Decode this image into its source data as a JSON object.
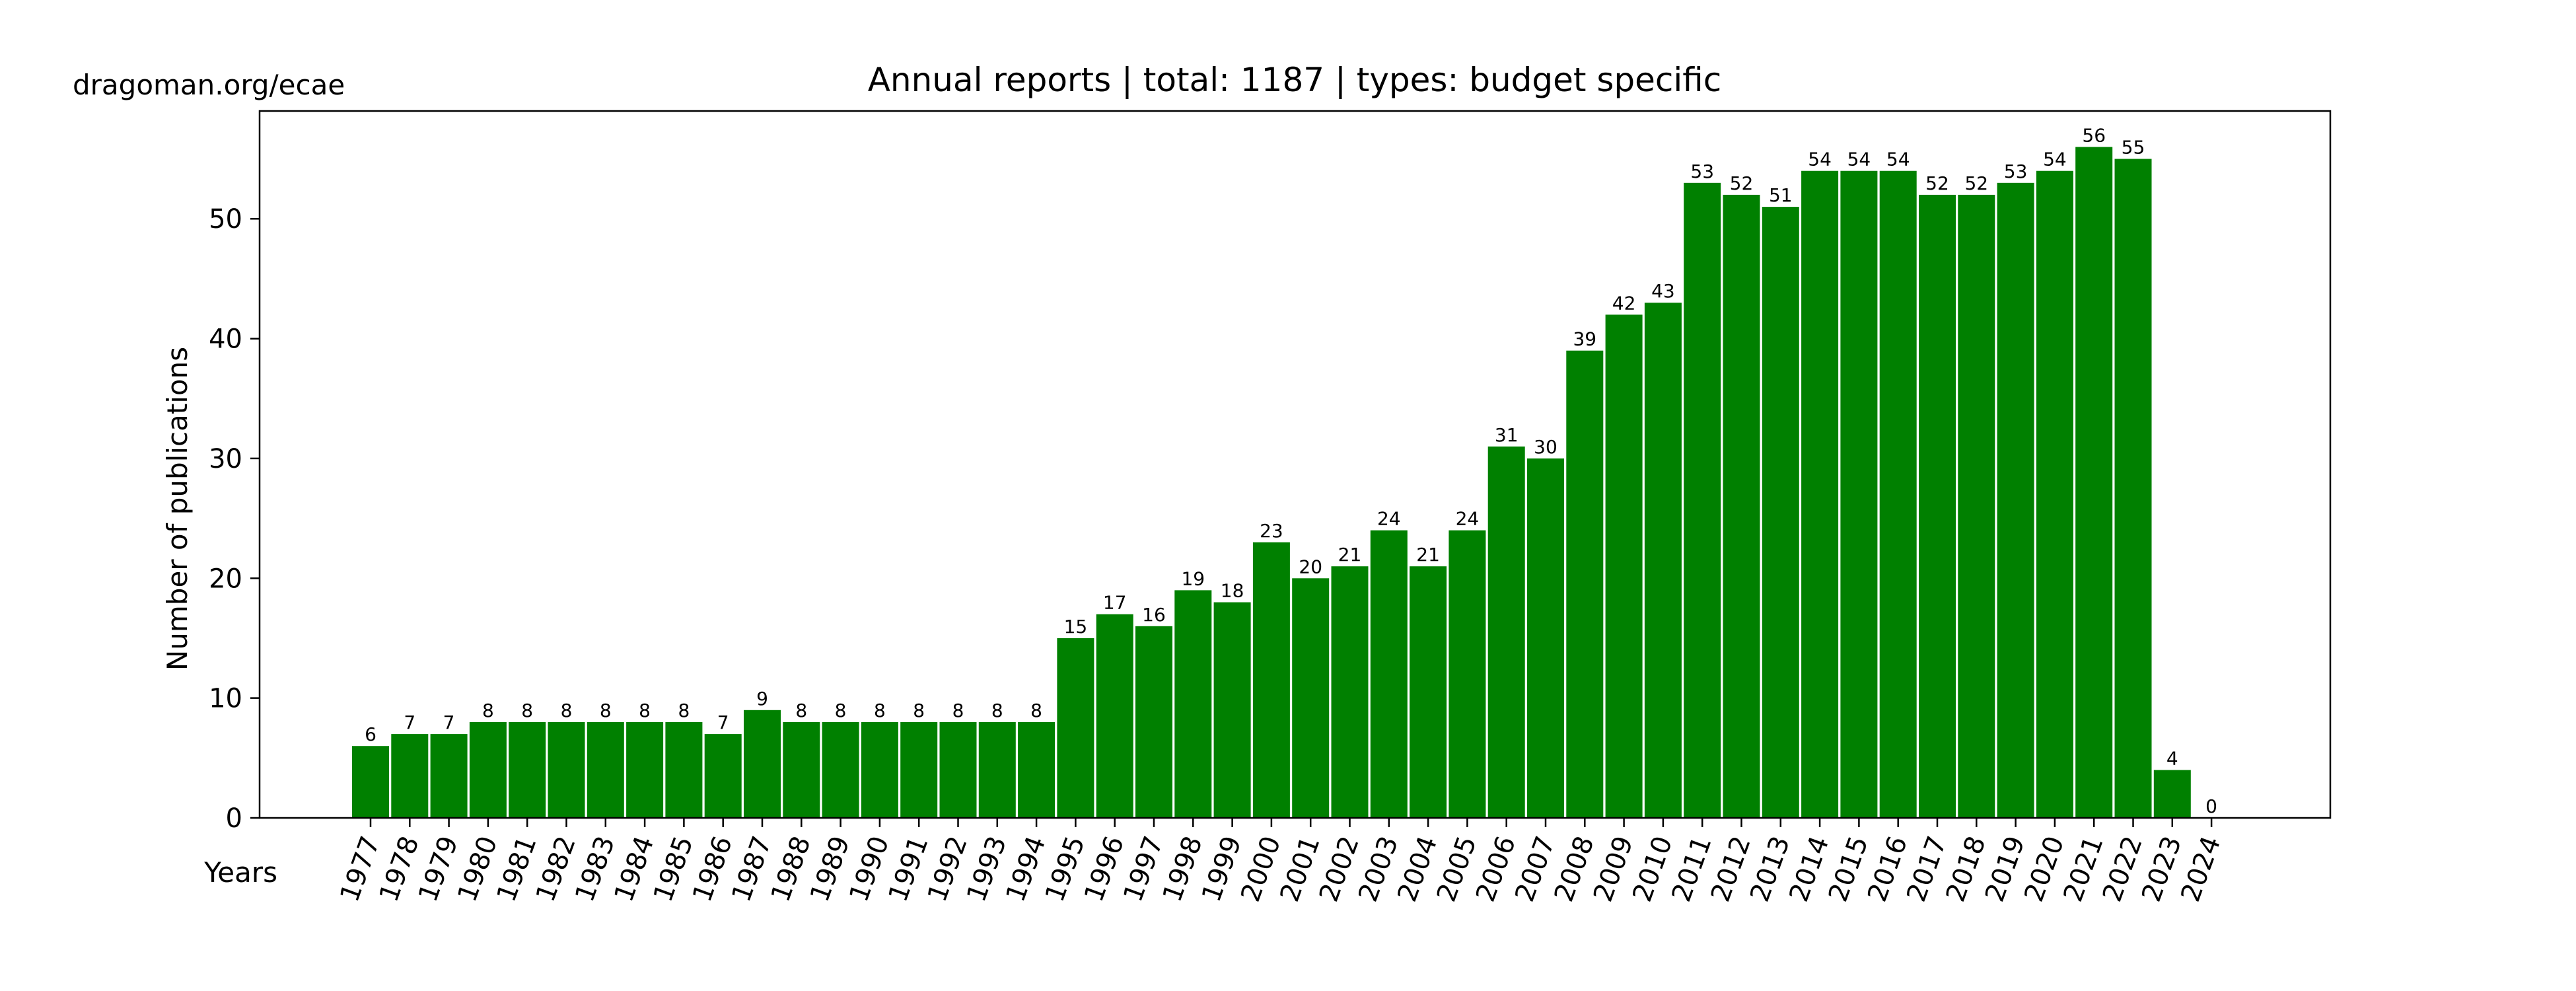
{
  "source_label": "dragoman.org/ecae",
  "chart_data": {
    "type": "bar",
    "title": "Annual reports | total: 1187 | types: budget specific",
    "xlabel": "Years",
    "ylabel": "Number of publications",
    "ylim": [
      0,
      59
    ],
    "yticks": [
      0,
      10,
      20,
      30,
      40,
      50
    ],
    "grid": false,
    "bar_color": "#008000",
    "categories": [
      "1977",
      "1978",
      "1979",
      "1980",
      "1981",
      "1982",
      "1983",
      "1984",
      "1985",
      "1986",
      "1987",
      "1988",
      "1989",
      "1990",
      "1991",
      "1992",
      "1993",
      "1994",
      "1995",
      "1996",
      "1997",
      "1998",
      "1999",
      "2000",
      "2001",
      "2002",
      "2003",
      "2004",
      "2005",
      "2006",
      "2007",
      "2008",
      "2009",
      "2010",
      "2011",
      "2012",
      "2013",
      "2014",
      "2015",
      "2016",
      "2017",
      "2018",
      "2019",
      "2020",
      "2021",
      "2022",
      "2023",
      "2024"
    ],
    "values": [
      6,
      7,
      7,
      8,
      8,
      8,
      8,
      8,
      8,
      7,
      9,
      8,
      8,
      8,
      8,
      8,
      8,
      8,
      15,
      17,
      16,
      19,
      18,
      23,
      20,
      21,
      24,
      21,
      24,
      31,
      30,
      39,
      42,
      43,
      53,
      52,
      51,
      54,
      54,
      54,
      52,
      52,
      53,
      54,
      56,
      55,
      4,
      0
    ]
  }
}
